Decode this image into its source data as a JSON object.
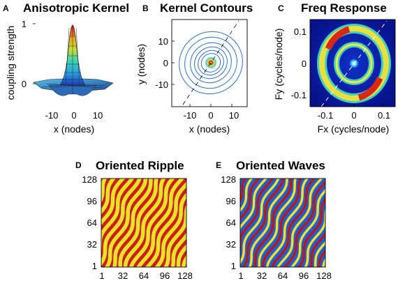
{
  "panels": {
    "A": {
      "letter": "A",
      "title": "Anisotropic Kernel",
      "xlabel": "x (nodes)",
      "ylabel": "coupling strength",
      "xticks": [
        "-10",
        "0",
        "10"
      ],
      "yticks": [
        "0",
        "1"
      ]
    },
    "B": {
      "letter": "B",
      "title": "Kernel Contours",
      "xlabel": "x (nodes)",
      "ylabel": "y (nodes)",
      "xticks": [
        "-10",
        "0",
        "10"
      ],
      "yticks": [
        "10",
        "0",
        "-10"
      ]
    },
    "C": {
      "letter": "C",
      "title": "Freq Response",
      "xlabel": "Fx (cycles/node)",
      "ylabel": "Fy (cycles/node)",
      "xticks": [
        "-0.1",
        "0",
        "0.1"
      ],
      "yticks": [
        "0.1",
        "0",
        "-0.1"
      ]
    },
    "D": {
      "letter": "D",
      "title": "Oriented Ripple",
      "xticks": [
        "1",
        "32",
        "64",
        "96",
        "128"
      ],
      "yticks": [
        "128",
        "96",
        "64",
        "32",
        "1"
      ]
    },
    "E": {
      "letter": "E",
      "title": "Oriented Waves",
      "xticks": [
        "1",
        "32",
        "64",
        "96",
        "128"
      ],
      "yticks": [
        "128",
        "96",
        "64",
        "32",
        "1"
      ]
    }
  },
  "colors": {
    "ripple_red": "#cc1f1a",
    "ripple_yellow": "#e8e22a",
    "waves_blue": "#1f5fd0",
    "waves_red": "#b8191d",
    "waves_yellow": "#f0e030",
    "contour_blue": "#2a6fd6",
    "freq_dark": "#0a1a8c"
  }
}
